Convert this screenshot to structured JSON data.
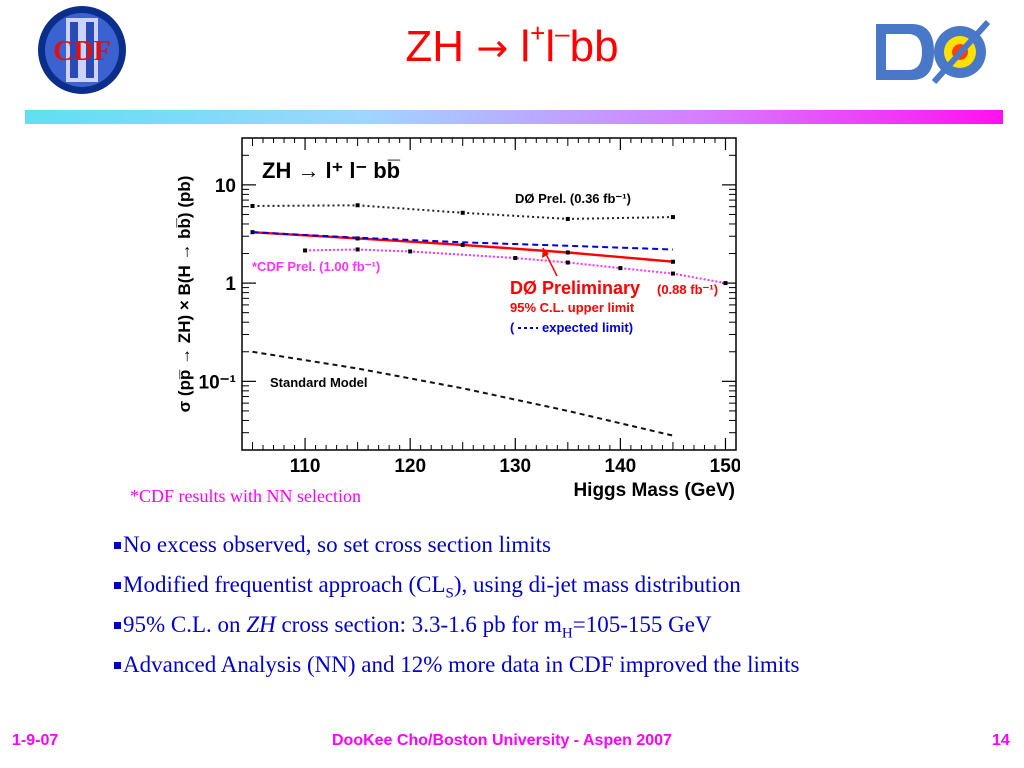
{
  "slide": {
    "title_main": "ZH",
    "title_arrow": "→",
    "title_l1": "l",
    "title_plus": "+",
    "title_l2": "l",
    "title_minus": "–",
    "title_bb": "bb",
    "cdf_logo_text": "CDF",
    "d0_logo_text": "DØ",
    "footnote": "*CDF results with NN selection",
    "bullets": {
      "b1": "No excess observed, so set cross section limits",
      "b2_pre": "Modified frequentist approach (CL",
      "b2_sub": "S",
      "b2_post": "), using di-jet mass distribution",
      "b3_pre": "95% C.L. on ",
      "b3_em": "ZH",
      "b3_mid": " cross section: 3.3-1.6 pb for m",
      "b3_sub": "H",
      "b3_post": "=105-155 GeV",
      "b4": "Advanced Analysis (NN) and 12% more data in CDF improved the limits"
    },
    "footer": {
      "date": "1-9-07",
      "center": "DooKee Cho/Boston University - Aspen 2007",
      "page": "14"
    },
    "colors": {
      "title": "#ff0000",
      "text": "#0000cc",
      "accent": "#ff00ff"
    }
  },
  "chart_data": {
    "type": "line",
    "y_scale": "log",
    "xlim": [
      104,
      151
    ],
    "ylim": [
      0.02,
      30
    ],
    "plot_title": "ZH → l⁺ l⁻ bb̅",
    "xlabel": "Higgs Mass (GeV)",
    "ylabel": "σ (pp̅ → ZH) × B(H → bb̅) (pb)",
    "xticks": [
      110,
      120,
      130,
      140,
      150
    ],
    "yticks": [
      {
        "value": 10,
        "label": "10"
      },
      {
        "value": 1,
        "label": "1"
      },
      {
        "value": 0.1,
        "label": "10⁻¹"
      }
    ],
    "series": [
      {
        "name": "DØ Prel. (0.36 fb⁻¹)",
        "color": "#222222",
        "dash": "2,3",
        "markers": true,
        "x": [
          105,
          115,
          125,
          135,
          145
        ],
        "y": [
          6.1,
          6.2,
          5.2,
          4.5,
          4.7
        ]
      },
      {
        "name": "CDF Prel. (1.00 fb⁻¹)",
        "color": "#ff33ff",
        "dash": "2,2",
        "markers": true,
        "x": [
          110,
          115,
          120,
          130,
          135,
          140,
          145,
          150
        ],
        "y": [
          2.15,
          2.2,
          2.1,
          1.8,
          1.62,
          1.42,
          1.25,
          1.0
        ]
      },
      {
        "name": "DØ Preliminary (0.88 fb⁻¹)",
        "color": "#ff0000",
        "dash": "",
        "markers": true,
        "x": [
          105,
          115,
          125,
          135,
          145
        ],
        "y": [
          3.3,
          2.85,
          2.45,
          2.05,
          1.65
        ]
      },
      {
        "name": "expected limit",
        "color": "#0000dd",
        "dash": "6,4",
        "markers": false,
        "x": [
          105,
          115,
          125,
          135,
          145
        ],
        "y": [
          3.3,
          2.9,
          2.6,
          2.4,
          2.2
        ]
      },
      {
        "name": "Standard Model",
        "color": "#111111",
        "dash": "5,4",
        "markers": false,
        "x": [
          105,
          115,
          125,
          135,
          145
        ],
        "y": [
          0.2,
          0.135,
          0.085,
          0.05,
          0.028
        ]
      }
    ],
    "annotations": {
      "d0_036": "DØ Prel. (0.36 fb⁻¹)",
      "cdf_100": "*CDF Prel. (1.00 fb⁻¹)",
      "d0_prelim": "DØ Preliminary",
      "d0_lumi": "(0.88 fb⁻¹)",
      "cl_limit": "95% C.L. upper limit",
      "expected_open": "(",
      "expected": "expected limit)",
      "sm": "Standard Model"
    }
  }
}
